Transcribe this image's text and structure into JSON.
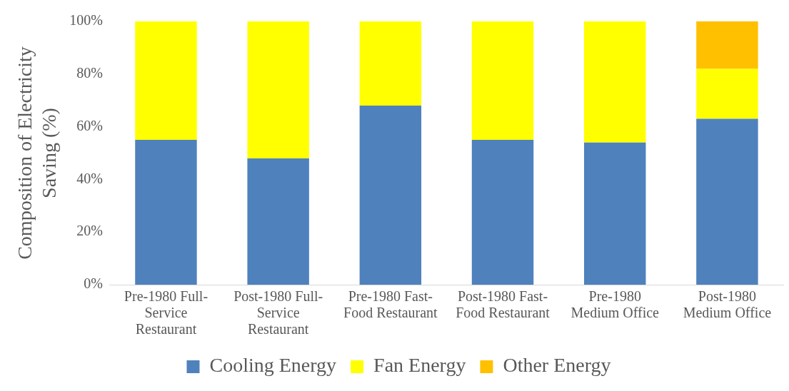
{
  "chart_data": {
    "type": "bar",
    "stacked": true,
    "ylabel": "Composition of Electricity Saving (%)",
    "categories": [
      "Pre-1980 Full-Service Restaurant",
      "Post-1980 Full-Service Restaurant",
      "Pre-1980 Fast-Food Restaurant",
      "Post-1980 Fast-Food Restaurant",
      "Pre-1980 Medium Office",
      "Post-1980 Medium Office"
    ],
    "series": [
      {
        "name": "Cooling Energy",
        "color": "#4f81bd",
        "values": [
          55,
          48,
          68,
          55,
          54,
          63
        ]
      },
      {
        "name": "Fan Energy",
        "color": "#ffff00",
        "values": [
          45,
          52,
          32,
          45,
          46,
          19
        ]
      },
      {
        "name": "Other Energy",
        "color": "#ffc000",
        "values": [
          0,
          0,
          0,
          0,
          0,
          18
        ]
      }
    ],
    "ylim": [
      0,
      100
    ],
    "yticks": [
      {
        "value": 0,
        "label": "0%"
      },
      {
        "value": 20,
        "label": "20%"
      },
      {
        "value": 40,
        "label": "40%"
      },
      {
        "value": 60,
        "label": "60%"
      },
      {
        "value": 80,
        "label": "80%"
      },
      {
        "value": 100,
        "label": "100%"
      }
    ],
    "grid": false,
    "legend": "bottom"
  }
}
